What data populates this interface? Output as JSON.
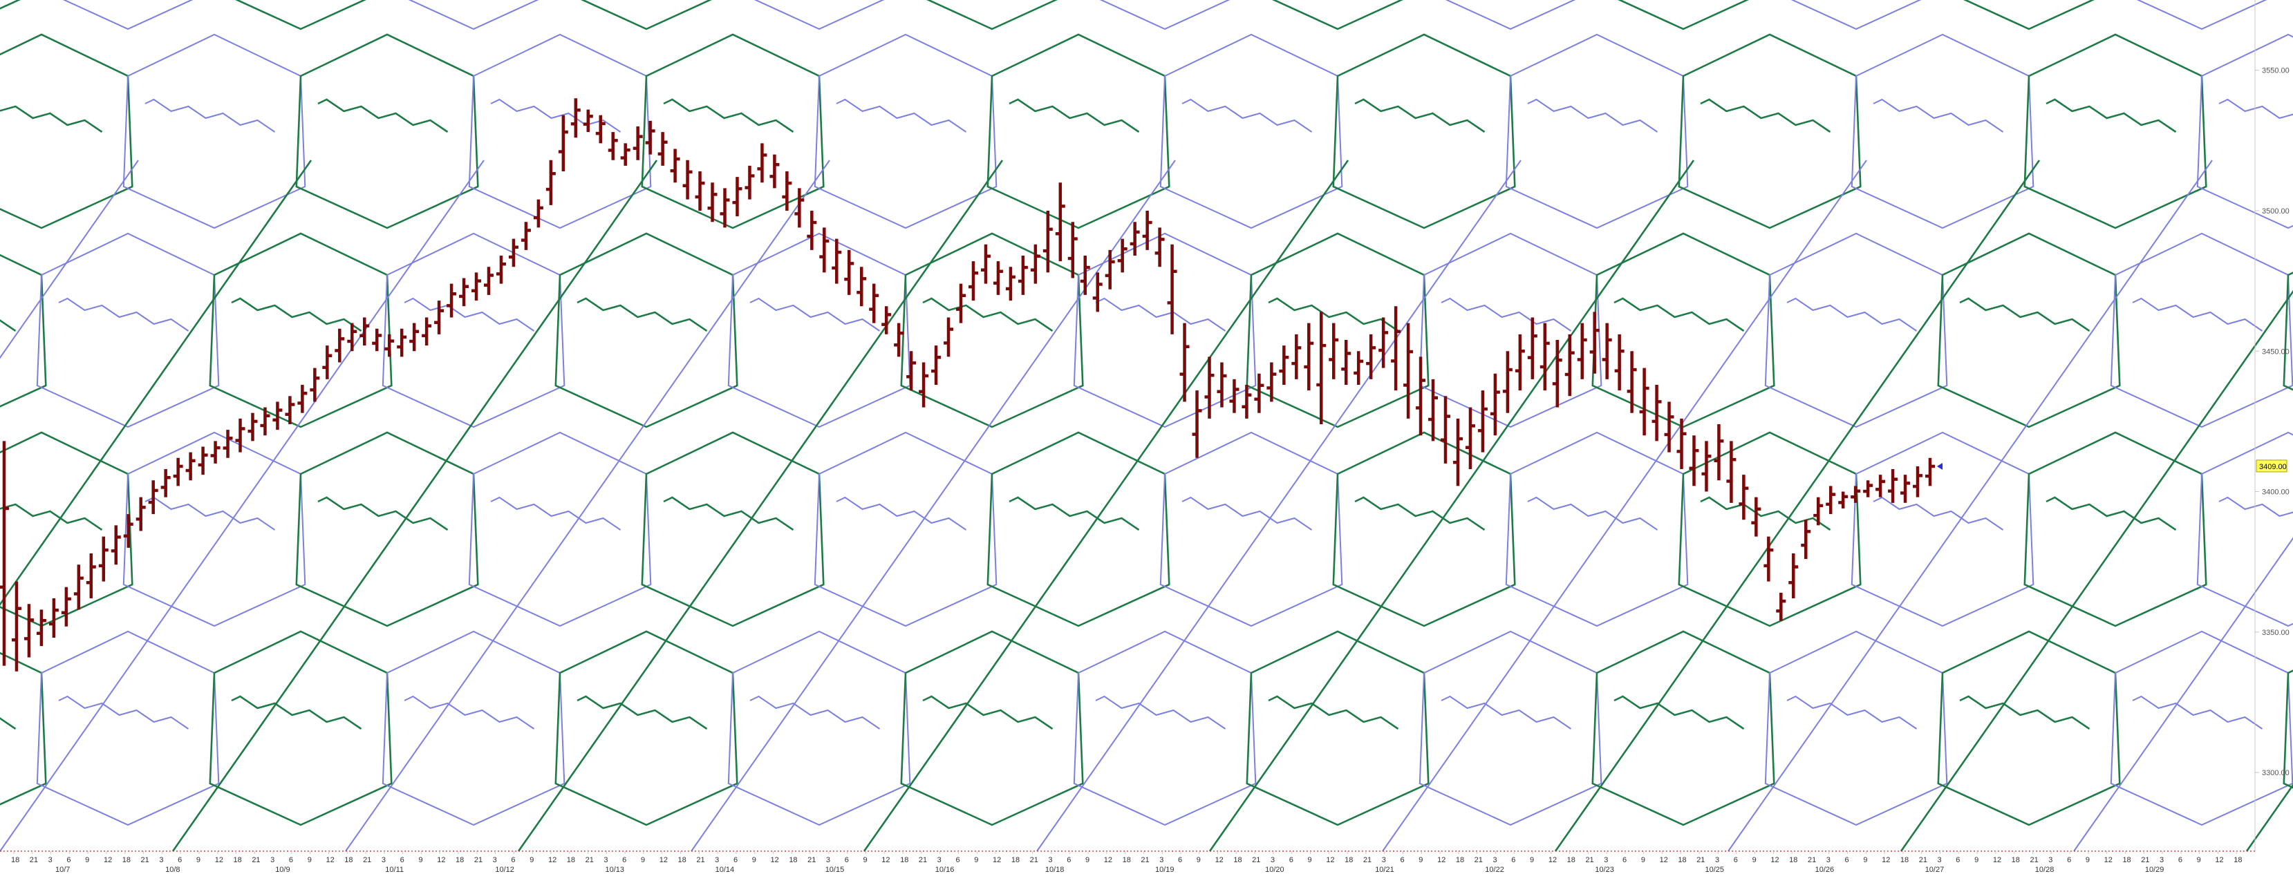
{
  "chart_data": {
    "type": "bar",
    "subtype": "ohlc-price-bars",
    "title": "",
    "xlabel": "",
    "ylabel": "",
    "ylim": [
      3272,
      3575
    ],
    "y_ticks": [
      {
        "value": 3550,
        "label": "3550.00"
      },
      {
        "value": 3500,
        "label": "3500.00"
      },
      {
        "value": 3450,
        "label": "3450.00"
      },
      {
        "value": 3400,
        "label": "3400.00"
      },
      {
        "value": 3350,
        "label": "3350.00"
      },
      {
        "value": 3300,
        "label": "3300.00"
      }
    ],
    "current_price": {
      "value": 3409,
      "label": "3409.00"
    },
    "hour_tick_labels": [
      "18",
      "21",
      "3",
      "6",
      "9",
      "12",
      "18",
      "21",
      "3",
      "6",
      "9",
      "12",
      "18",
      "21",
      "3",
      "6",
      "9",
      "12",
      "18",
      "21",
      "3",
      "6",
      "9",
      "12",
      "18",
      "21",
      "3",
      "6",
      "9",
      "12",
      "18",
      "21",
      "3",
      "6",
      "9",
      "12",
      "18",
      "21",
      "3",
      "6",
      "9",
      "12",
      "18",
      "21",
      "3",
      "6",
      "9",
      "12",
      "18",
      "21",
      "3",
      "6",
      "9",
      "12",
      "18",
      "21",
      "3",
      "6",
      "9",
      "12",
      "18",
      "21",
      "3",
      "6",
      "9",
      "12",
      "18",
      "21",
      "3",
      "6",
      "9",
      "12",
      "18",
      "21",
      "3",
      "6",
      "9",
      "12",
      "18",
      "21",
      "3",
      "6",
      "9",
      "12",
      "18",
      "21",
      "3",
      "6",
      "9",
      "12",
      "18",
      "21",
      "3",
      "6",
      "9",
      "12",
      "18",
      "21",
      "3",
      "6",
      "9",
      "12",
      "18",
      "21",
      "3",
      "6",
      "9",
      "12",
      "18",
      "21",
      "3",
      "6",
      "9",
      "12",
      "18",
      "21",
      "3",
      "6",
      "9",
      "12",
      "18"
    ],
    "date_labels": [
      "10/7",
      "10/8",
      "10/9",
      "10/11",
      "10/12",
      "10/13",
      "10/14",
      "10/15",
      "10/16",
      "10/18",
      "10/19",
      "10/20",
      "10/21",
      "10/22",
      "10/23",
      "10/25",
      "10/26",
      "10/27",
      "10/28",
      "10/29"
    ],
    "series": [
      {
        "values": [
          [
            3418,
            3338
          ],
          [
            3368,
            3336
          ],
          [
            3360,
            3341
          ],
          [
            3358,
            3345
          ],
          [
            3362,
            3348
          ],
          [
            3366,
            3352
          ],
          [
            3374,
            3358
          ],
          [
            3378,
            3362
          ],
          [
            3384,
            3368
          ],
          [
            3388,
            3374
          ],
          [
            3392,
            3380
          ],
          [
            3398,
            3386
          ],
          [
            3404,
            3392
          ],
          [
            3408,
            3398
          ],
          [
            3412,
            3402
          ],
          [
            3414,
            3404
          ],
          [
            3416,
            3406
          ],
          [
            3418,
            3410
          ],
          [
            3422,
            3412
          ],
          [
            3426,
            3414
          ],
          [
            3428,
            3418
          ],
          [
            3430,
            3420
          ],
          [
            3432,
            3422
          ],
          [
            3434,
            3424
          ],
          [
            3438,
            3428
          ],
          [
            3444,
            3432
          ],
          [
            3452,
            3440
          ],
          [
            3458,
            3446
          ],
          [
            3460,
            3450
          ],
          [
            3462,
            3452
          ],
          [
            3458,
            3450
          ],
          [
            3456,
            3448
          ],
          [
            3458,
            3448
          ],
          [
            3460,
            3450
          ],
          [
            3462,
            3452
          ],
          [
            3468,
            3456
          ],
          [
            3474,
            3462
          ],
          [
            3476,
            3466
          ],
          [
            3478,
            3468
          ],
          [
            3480,
            3470
          ],
          [
            3484,
            3474
          ],
          [
            3490,
            3480
          ],
          [
            3496,
            3486
          ],
          [
            3504,
            3494
          ],
          [
            3518,
            3502
          ],
          [
            3534,
            3514
          ],
          [
            3540,
            3526
          ],
          [
            3536,
            3528
          ],
          [
            3534,
            3524
          ],
          [
            3528,
            3518
          ],
          [
            3524,
            3516
          ],
          [
            3530,
            3518
          ],
          [
            3532,
            3520
          ],
          [
            3528,
            3516
          ],
          [
            3522,
            3510
          ],
          [
            3518,
            3504
          ],
          [
            3514,
            3500
          ],
          [
            3510,
            3496
          ],
          [
            3508,
            3494
          ],
          [
            3512,
            3498
          ],
          [
            3516,
            3504
          ],
          [
            3524,
            3510
          ],
          [
            3520,
            3508
          ],
          [
            3514,
            3500
          ],
          [
            3508,
            3494
          ],
          [
            3500,
            3486
          ],
          [
            3494,
            3478
          ],
          [
            3490,
            3474
          ],
          [
            3486,
            3470
          ],
          [
            3480,
            3466
          ],
          [
            3474,
            3460
          ],
          [
            3466,
            3456
          ],
          [
            3460,
            3448
          ],
          [
            3450,
            3436
          ],
          [
            3446,
            3430
          ],
          [
            3452,
            3438
          ],
          [
            3462,
            3448
          ],
          [
            3474,
            3460
          ],
          [
            3482,
            3468
          ],
          [
            3488,
            3474
          ],
          [
            3482,
            3470
          ],
          [
            3480,
            3468
          ],
          [
            3484,
            3470
          ],
          [
            3488,
            3474
          ],
          [
            3500,
            3478
          ],
          [
            3510,
            3482
          ],
          [
            3496,
            3476
          ],
          [
            3484,
            3470
          ],
          [
            3478,
            3464
          ],
          [
            3486,
            3472
          ],
          [
            3490,
            3478
          ],
          [
            3496,
            3484
          ],
          [
            3500,
            3486
          ],
          [
            3494,
            3480
          ],
          [
            3488,
            3456
          ],
          [
            3460,
            3432
          ],
          [
            3436,
            3412
          ],
          [
            3448,
            3426
          ],
          [
            3446,
            3430
          ],
          [
            3440,
            3428
          ],
          [
            3438,
            3426
          ],
          [
            3442,
            3428
          ],
          [
            3446,
            3432
          ],
          [
            3452,
            3438
          ],
          [
            3456,
            3440
          ],
          [
            3460,
            3436
          ],
          [
            3464,
            3424
          ],
          [
            3460,
            3440
          ],
          [
            3454,
            3438
          ],
          [
            3450,
            3438
          ],
          [
            3456,
            3440
          ],
          [
            3462,
            3444
          ],
          [
            3466,
            3436
          ],
          [
            3460,
            3426
          ],
          [
            3448,
            3420
          ],
          [
            3440,
            3418
          ],
          [
            3434,
            3410
          ],
          [
            3426,
            3402
          ],
          [
            3430,
            3408
          ],
          [
            3436,
            3414
          ],
          [
            3442,
            3420
          ],
          [
            3450,
            3428
          ],
          [
            3456,
            3436
          ],
          [
            3462,
            3440
          ],
          [
            3460,
            3436
          ],
          [
            3454,
            3430
          ],
          [
            3456,
            3434
          ],
          [
            3460,
            3440
          ],
          [
            3464,
            3442
          ],
          [
            3460,
            3440
          ],
          [
            3456,
            3436
          ],
          [
            3450,
            3428
          ],
          [
            3444,
            3420
          ],
          [
            3438,
            3418
          ],
          [
            3432,
            3414
          ],
          [
            3426,
            3408
          ],
          [
            3420,
            3402
          ],
          [
            3418,
            3400
          ],
          [
            3424,
            3404
          ],
          [
            3418,
            3396
          ],
          [
            3406,
            3390
          ],
          [
            3398,
            3384
          ],
          [
            3384,
            3368
          ],
          [
            3364,
            3354
          ],
          [
            3378,
            3362
          ],
          [
            3390,
            3376
          ],
          [
            3398,
            3388
          ],
          [
            3402,
            3392
          ],
          [
            3400,
            3394
          ],
          [
            3402,
            3396
          ],
          [
            3404,
            3398
          ],
          [
            3406,
            3398
          ],
          [
            3408,
            3396
          ],
          [
            3406,
            3396
          ],
          [
            3409,
            3398
          ],
          [
            3412,
            3402
          ]
        ]
      }
    ]
  }
}
